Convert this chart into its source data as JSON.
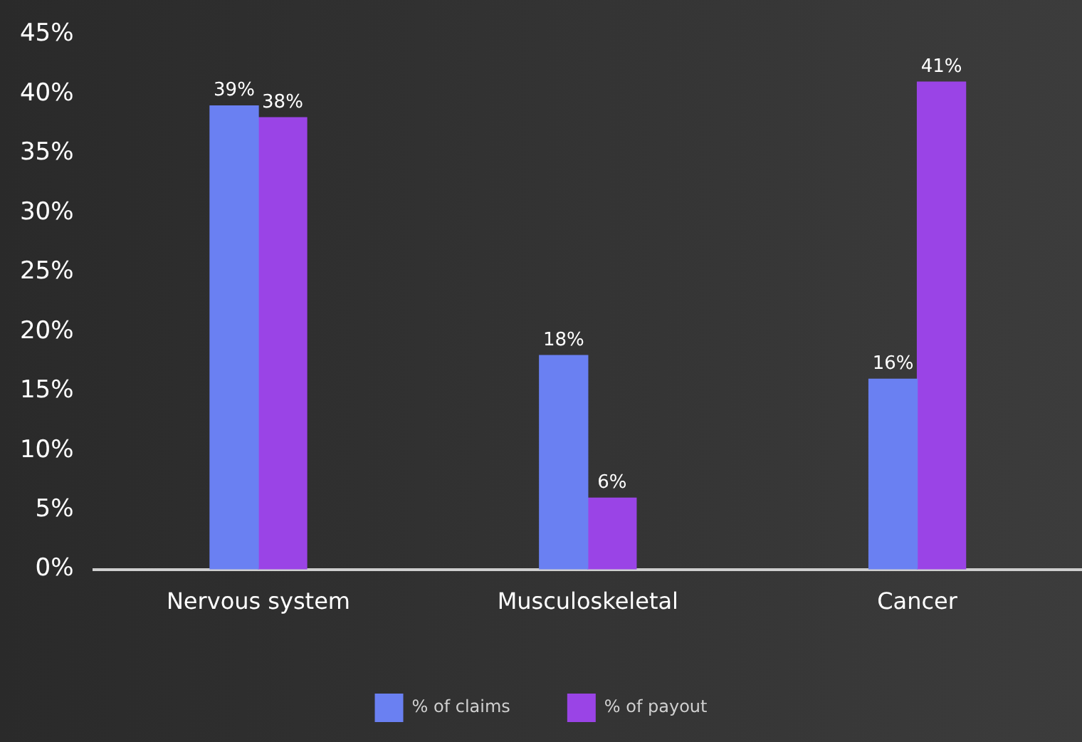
{
  "chart_data": {
    "type": "bar",
    "categories": [
      "Nervous system",
      "Musculoskeletal",
      "Cancer"
    ],
    "series": [
      {
        "name": "% of claims",
        "color": "#6a80f2",
        "values": [
          39,
          18,
          16
        ],
        "value_labels": [
          "39%",
          "18%",
          "16%"
        ]
      },
      {
        "name": "% of payout",
        "color": "#9a44e6",
        "values": [
          38,
          6,
          41
        ],
        "value_labels": [
          "38%",
          "6%",
          "41%"
        ]
      }
    ],
    "ylim": [
      0,
      45
    ],
    "yticks": [
      {
        "value": 0,
        "label": "0%"
      },
      {
        "value": 5,
        "label": "5%"
      },
      {
        "value": 10,
        "label": "10%"
      },
      {
        "value": 15,
        "label": "15%"
      },
      {
        "value": 20,
        "label": "20%"
      },
      {
        "value": 25,
        "label": "25%"
      },
      {
        "value": 30,
        "label": "30%"
      },
      {
        "value": 35,
        "label": "35%"
      },
      {
        "value": 40,
        "label": "40%"
      },
      {
        "value": 45,
        "label": "45%"
      }
    ],
    "grid": false,
    "legend": "bottom"
  }
}
